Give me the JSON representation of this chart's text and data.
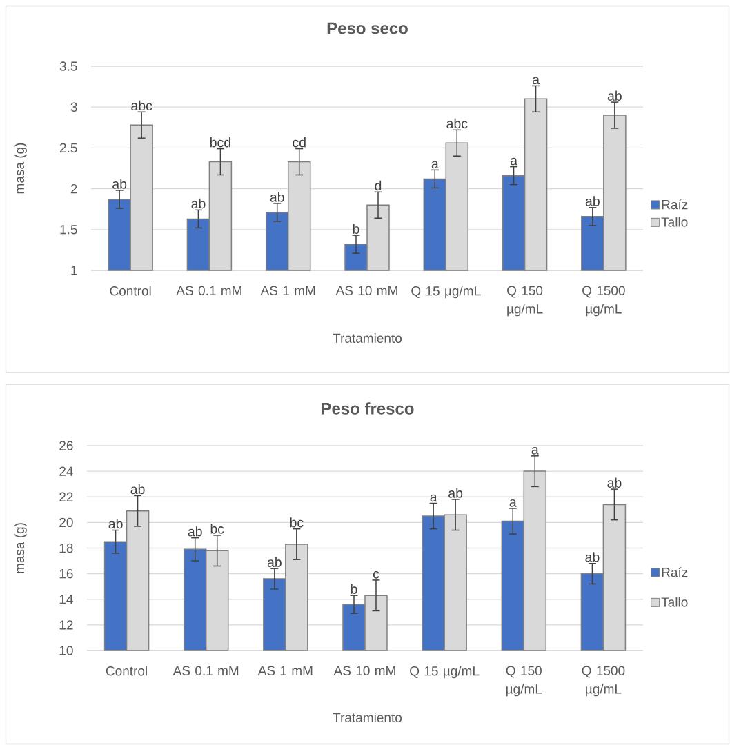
{
  "chart_data": [
    {
      "type": "bar",
      "title": "Peso seco",
      "xlabel": "Tratamiento",
      "ylabel": "masa (g)",
      "categories": [
        "Control",
        "AS 0.1 mM",
        "AS 1 mM",
        "AS 10 mM",
        "Q 15 µg/mL",
        "Q 150 µg/mL",
        "Q 1500 µg/mL"
      ],
      "series": [
        {
          "name": "Raíz",
          "color": "#4472c4",
          "values": [
            1.87,
            1.63,
            1.71,
            1.32,
            2.12,
            2.16,
            1.66
          ],
          "errors": [
            0.11,
            0.11,
            0.11,
            0.11,
            0.11,
            0.11,
            0.11
          ],
          "value_labels": [
            "ab",
            "ab",
            "ab",
            "b",
            "a",
            "a",
            "ab"
          ]
        },
        {
          "name": "Tallo",
          "color": "#d9d9d9",
          "values": [
            2.78,
            2.33,
            2.33,
            1.8,
            2.56,
            3.1,
            2.9
          ],
          "errors": [
            0.16,
            0.16,
            0.16,
            0.16,
            0.16,
            0.16,
            0.16
          ],
          "value_labels": [
            "abc",
            "bcd",
            "cd",
            "d",
            "abc",
            "a",
            "ab"
          ]
        }
      ],
      "ylim": [
        1,
        3.5
      ],
      "yticks": [
        1,
        1.5,
        2,
        2.5,
        3,
        3.5
      ],
      "grid": "y",
      "legend": "right"
    },
    {
      "type": "bar",
      "title": "Peso fresco",
      "xlabel": "Tratamiento",
      "ylabel": "masa (g)",
      "categories": [
        "Control",
        "AS 0.1 mM",
        "AS 1 mM",
        "AS 10 mM",
        "Q 15 µg/mL",
        "Q 150 µg/mL",
        "Q 1500 µg/mL"
      ],
      "series": [
        {
          "name": "Raíz",
          "color": "#4472c4",
          "values": [
            18.5,
            17.9,
            15.6,
            13.6,
            20.5,
            20.1,
            16.0
          ],
          "errors": [
            0.9,
            0.9,
            0.8,
            0.7,
            1.0,
            1.0,
            0.8
          ],
          "value_labels": [
            "ab",
            "ab",
            "ab",
            "b",
            "a",
            "a",
            "ab"
          ]
        },
        {
          "name": "Tallo",
          "color": "#d9d9d9",
          "values": [
            20.9,
            17.8,
            18.3,
            14.3,
            20.6,
            24.0,
            21.4
          ],
          "errors": [
            1.2,
            1.2,
            1.2,
            1.2,
            1.2,
            1.2,
            1.2
          ],
          "value_labels": [
            "ab",
            "bc",
            "bc",
            "c",
            "ab",
            "a",
            "ab"
          ]
        }
      ],
      "ylim": [
        10,
        26
      ],
      "yticks": [
        10,
        12,
        14,
        16,
        18,
        20,
        22,
        24,
        26
      ],
      "grid": "y",
      "legend": "right"
    }
  ]
}
